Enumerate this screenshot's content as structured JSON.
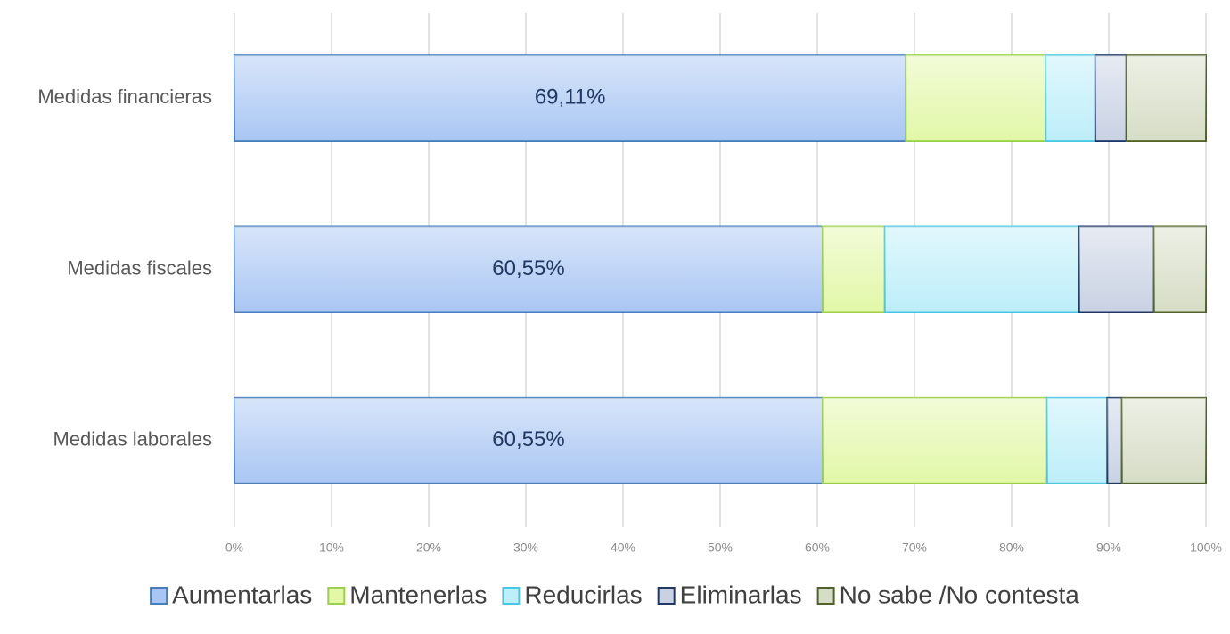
{
  "chart_data": {
    "type": "stacked-barh",
    "categories": [
      "Medidas financieras",
      "Medidas fiscales",
      "Medidas laborales"
    ],
    "series": [
      {
        "name": "Aumentarlas",
        "color": "#a9c6f3",
        "edge": "#4a7ebb",
        "values": [
          69.11,
          60.55,
          60.55
        ],
        "value_labels": [
          "69,11%",
          "60,55%",
          "60,55%"
        ]
      },
      {
        "name": "Mantenerlas",
        "color": "#e2f7a8",
        "edge": "#9bd14a",
        "values": [
          14.4,
          6.4,
          23.1
        ]
      },
      {
        "name": "Reducirlas",
        "color": "#bdeef9",
        "edge": "#4bc6e0",
        "values": [
          5.1,
          20.0,
          6.2
        ]
      },
      {
        "name": "Eliminarlas",
        "color": "#c9d2e3",
        "edge": "#1f3864",
        "values": [
          3.2,
          7.7,
          1.5
        ]
      },
      {
        "name": "No sabe /No contesta",
        "color": "#d6ddc6",
        "edge": "#4f6228",
        "values": [
          8.19,
          5.35,
          8.65
        ]
      }
    ],
    "xlim": [
      0,
      100
    ],
    "xticks": [
      {
        "value": 0,
        "label": "0%"
      },
      {
        "value": 10,
        "label": "10%"
      },
      {
        "value": 20,
        "label": "20%"
      },
      {
        "value": 30,
        "label": "30%"
      },
      {
        "value": 40,
        "label": "40%"
      },
      {
        "value": 50,
        "label": "50%"
      },
      {
        "value": 60,
        "label": "60%"
      },
      {
        "value": 70,
        "label": "70%"
      },
      {
        "value": 80,
        "label": "80%"
      },
      {
        "value": 90,
        "label": "90%"
      },
      {
        "value": 100,
        "label": "100%"
      }
    ],
    "grid": true,
    "legend": "bottom"
  }
}
